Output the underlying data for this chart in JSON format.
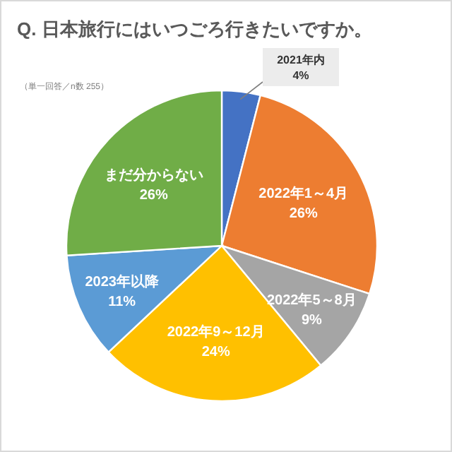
{
  "chart_data": {
    "type": "pie",
    "title": "Q. 日本旅行にはいつごろ行きたいですか。",
    "annotations": [
      "（単一回答／n数 255）"
    ],
    "categories": [
      "2021年内",
      "2022年1～4月",
      "2022年5～8月",
      "2022年9～12月",
      "2023年以降",
      "まだ分からない"
    ],
    "values": [
      4,
      26,
      9,
      24,
      11,
      26
    ],
    "value_labels": [
      "4%",
      "26%",
      "9%",
      "24%",
      "11%",
      "26%"
    ],
    "colors": [
      "#4472c4",
      "#ed7d31",
      "#a5a5a5",
      "#ffc000",
      "#5b9bd5",
      "#70ad47"
    ]
  }
}
